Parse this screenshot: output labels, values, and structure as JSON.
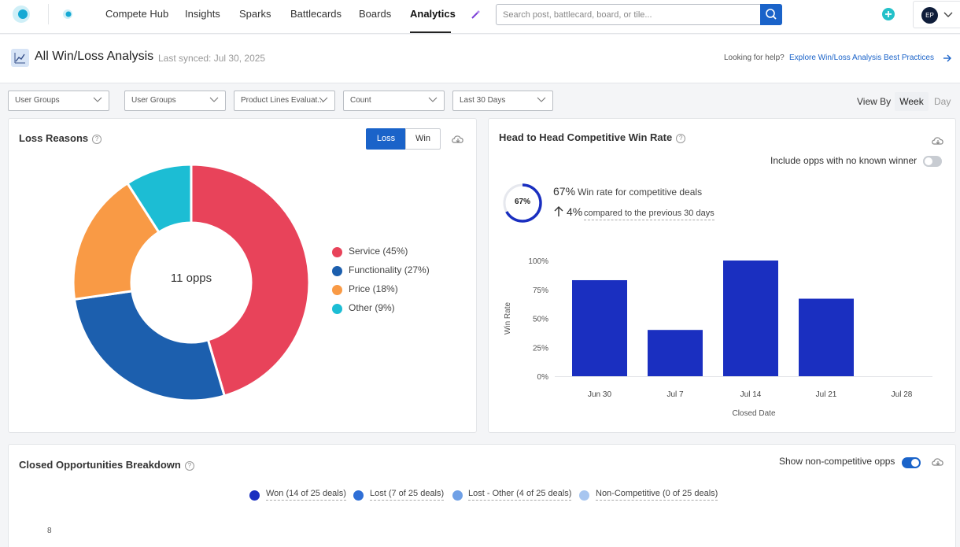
{
  "nav": {
    "items": [
      "Compete Hub",
      "Insights",
      "Sparks",
      "Battlecards",
      "Boards",
      "Analytics"
    ],
    "active": "Analytics",
    "search_placeholder": "Search post, battlecard, board, or tile...",
    "avatar_initials": "EP"
  },
  "header": {
    "title": "All Win/Loss Analysis",
    "synced": "Last synced: Jul 30, 2025",
    "help_prefix": "Looking for help?",
    "help_link": "Explore Win/Loss Analysis Best Practices"
  },
  "filters": [
    "User Groups",
    "User Groups",
    "Product Lines Evaluat...",
    "Count",
    "Last 30 Days"
  ],
  "view_by": {
    "label": "View By",
    "options": [
      "Week",
      "Day"
    ],
    "selected": "Week"
  },
  "loss_reasons": {
    "title": "Loss Reasons",
    "toggle": [
      "Loss",
      "Win"
    ],
    "selected": "Loss",
    "center_label": "11 opps"
  },
  "head_to_head": {
    "title": "Head to Head Competitive Win Rate",
    "include_label": "Include opps with no known winner",
    "include_on": false,
    "ring_label": "67%",
    "win_rate_value": "67%",
    "win_rate_text": "Win rate for competitive deals",
    "change_value": "4%",
    "change_text": "compared to the previous 30 days"
  },
  "breakdown": {
    "title": "Closed Opportunities Breakdown",
    "toggle_label": "Show non-competitive opps",
    "toggle_on": true,
    "legend": [
      {
        "label": "Won (14 of 25 deals)",
        "color": "#1a2fc0"
      },
      {
        "label": "Lost (7 of 25 deals)",
        "color": "#2f6fd6"
      },
      {
        "label": "Lost - Other (4 of 25 deals)",
        "color": "#6fa0e6"
      },
      {
        "label": "Non-Competitive (0 of 25 deals)",
        "color": "#a8c6f0"
      }
    ],
    "y_tick_top": "8"
  },
  "chart_data": [
    {
      "type": "pie",
      "title": "Loss Reasons",
      "categories": [
        "Service (45%)",
        "Functionality (27%)",
        "Price (18%)",
        "Other (9%)"
      ],
      "values": [
        45,
        27,
        18,
        9
      ],
      "colors": [
        "#e8435a",
        "#1c5fae",
        "#f99a45",
        "#1cbdd4"
      ],
      "legend": "right"
    },
    {
      "type": "bar",
      "title": "",
      "categories": [
        "Jun 30",
        "Jul 7",
        "Jul 14",
        "Jul 21",
        "Jul 28"
      ],
      "values": [
        83,
        40,
        100,
        67,
        0
      ],
      "xlabel": "Closed Date",
      "ylabel": "Win Rate",
      "yticks": [
        "100%",
        "75%",
        "50%",
        "25%",
        "0%"
      ],
      "ylim": [
        0,
        100
      ],
      "color": "#1a2fc0"
    }
  ]
}
